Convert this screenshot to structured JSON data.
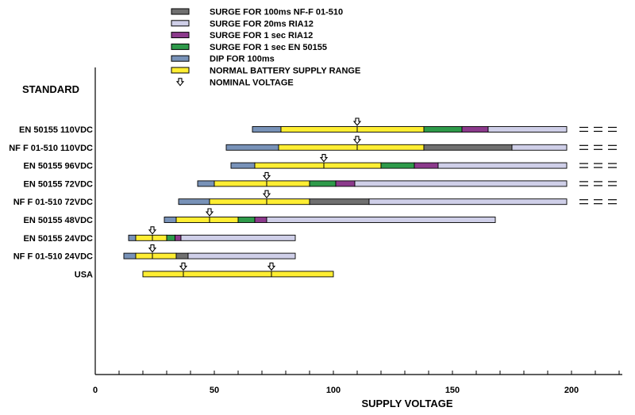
{
  "chart_data": {
    "type": "bar",
    "orientation": "horizontal-range",
    "title": "",
    "ylabel": "STANDARD",
    "xlabel": "SUPPLY VOLTAGE",
    "xlim": [
      0,
      220
    ],
    "x_ticks": [
      0,
      50,
      100,
      150,
      200
    ],
    "legend": [
      {
        "key": "nf_surge_100ms",
        "label": "SURGE FOR 100ms NF-F 01-510",
        "color": "#707070"
      },
      {
        "key": "ria_surge_20ms",
        "label": "SURGE FOR 20ms RIA12",
        "color": "#cfcfe8"
      },
      {
        "key": "ria_surge_1s",
        "label": "SURGE FOR 1 sec RIA12",
        "color": "#8c3a8c"
      },
      {
        "key": "en_surge_1s",
        "label": "SURGE FOR 1 sec EN 50155",
        "color": "#2e9a4a"
      },
      {
        "key": "dip_100ms",
        "label": "DIP FOR 100ms",
        "color": "#7892b8"
      },
      {
        "key": "normal",
        "label": "NORMAL BATTERY SUPPLY RANGE",
        "color": "#ffee33"
      },
      {
        "key": "nominal",
        "label": "NOMINAL VOLTAGE",
        "color": "#ffffff"
      }
    ],
    "rows": [
      {
        "label": "EN 50155 110VDC",
        "nominal": [
          110
        ],
        "continues": true,
        "segments": [
          {
            "kind": "dip_100ms",
            "from": 66,
            "to": 78
          },
          {
            "kind": "normal",
            "from": 78,
            "to": 138
          },
          {
            "kind": "en_surge_1s",
            "from": 138,
            "to": 154
          },
          {
            "kind": "ria_surge_1s",
            "from": 154,
            "to": 165
          },
          {
            "kind": "ria_surge_20ms",
            "from": 165,
            "to": 198
          }
        ]
      },
      {
        "label": "NF F 01-510 110VDC",
        "nominal": [
          110
        ],
        "continues": true,
        "segments": [
          {
            "kind": "dip_100ms",
            "from": 55,
            "to": 77
          },
          {
            "kind": "normal",
            "from": 77,
            "to": 138
          },
          {
            "kind": "nf_surge_100ms",
            "from": 138,
            "to": 175
          },
          {
            "kind": "ria_surge_20ms",
            "from": 175,
            "to": 198
          }
        ]
      },
      {
        "label": "EN 50155 96VDC",
        "nominal": [
          96
        ],
        "continues": true,
        "segments": [
          {
            "kind": "dip_100ms",
            "from": 57,
            "to": 67
          },
          {
            "kind": "normal",
            "from": 67,
            "to": 120
          },
          {
            "kind": "en_surge_1s",
            "from": 120,
            "to": 134
          },
          {
            "kind": "ria_surge_1s",
            "from": 134,
            "to": 144
          },
          {
            "kind": "ria_surge_20ms",
            "from": 144,
            "to": 198
          }
        ]
      },
      {
        "label": "EN 50155 72VDC",
        "nominal": [
          72
        ],
        "continues": true,
        "segments": [
          {
            "kind": "dip_100ms",
            "from": 43,
            "to": 50
          },
          {
            "kind": "normal",
            "from": 50,
            "to": 90
          },
          {
            "kind": "en_surge_1s",
            "from": 90,
            "to": 101
          },
          {
            "kind": "ria_surge_1s",
            "from": 101,
            "to": 109
          },
          {
            "kind": "ria_surge_20ms",
            "from": 109,
            "to": 198
          }
        ]
      },
      {
        "label": "NF F 01-510 72VDC",
        "nominal": [
          72
        ],
        "continues": true,
        "segments": [
          {
            "kind": "dip_100ms",
            "from": 35,
            "to": 48
          },
          {
            "kind": "normal",
            "from": 48,
            "to": 90
          },
          {
            "kind": "nf_surge_100ms",
            "from": 90,
            "to": 115
          },
          {
            "kind": "ria_surge_20ms",
            "from": 115,
            "to": 198
          }
        ]
      },
      {
        "label": "EN 50155 48VDC",
        "nominal": [
          48
        ],
        "continues": false,
        "segments": [
          {
            "kind": "dip_100ms",
            "from": 29,
            "to": 34
          },
          {
            "kind": "normal",
            "from": 34,
            "to": 60
          },
          {
            "kind": "en_surge_1s",
            "from": 60,
            "to": 67
          },
          {
            "kind": "ria_surge_1s",
            "from": 67,
            "to": 72
          },
          {
            "kind": "ria_surge_20ms",
            "from": 72,
            "to": 168
          }
        ]
      },
      {
        "label": "EN 50155 24VDC",
        "nominal": [
          24
        ],
        "continues": false,
        "segments": [
          {
            "kind": "dip_100ms",
            "from": 14,
            "to": 17
          },
          {
            "kind": "normal",
            "from": 17,
            "to": 30
          },
          {
            "kind": "en_surge_1s",
            "from": 30,
            "to": 33.5
          },
          {
            "kind": "ria_surge_1s",
            "from": 33.5,
            "to": 36
          },
          {
            "kind": "ria_surge_20ms",
            "from": 36,
            "to": 84
          }
        ]
      },
      {
        "label": "NF F 01-510 24VDC",
        "nominal": [
          24
        ],
        "continues": false,
        "segments": [
          {
            "kind": "dip_100ms",
            "from": 12,
            "to": 17
          },
          {
            "kind": "normal",
            "from": 17,
            "to": 34
          },
          {
            "kind": "nf_surge_100ms",
            "from": 34,
            "to": 39
          },
          {
            "kind": "ria_surge_20ms",
            "from": 39,
            "to": 84
          }
        ]
      },
      {
        "label": "USA",
        "nominal": [
          37,
          74
        ],
        "continues": false,
        "segments": [
          {
            "kind": "normal",
            "from": 20,
            "to": 100
          }
        ]
      }
    ]
  }
}
